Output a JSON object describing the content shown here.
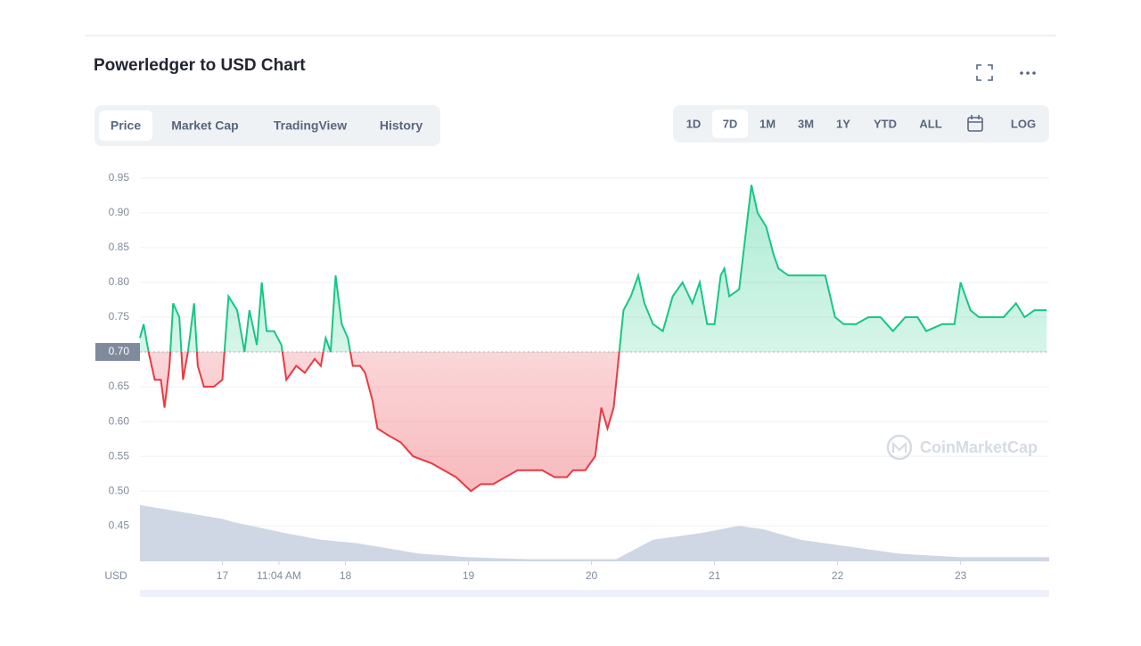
{
  "header": {
    "title": "Powerledger to USD Chart"
  },
  "tabs": [
    "Price",
    "Market Cap",
    "TradingView",
    "History"
  ],
  "ranges": [
    "1D",
    "7D",
    "1M",
    "3M",
    "1Y",
    "YTD",
    "ALL",
    "LOG"
  ],
  "watermark": "CoinMarketCap",
  "chart_data": {
    "type": "line",
    "y_label": "USD",
    "up_color": "#16c784",
    "down_color": "#ea3943",
    "volume_color": "#cfd6e4",
    "baseline": {
      "value": 0.7,
      "label": "0.70"
    },
    "grid": true,
    "xlim": [
      16.33,
      23.72
    ],
    "ylim": [
      0.399,
      0.969
    ],
    "xticks": [
      {
        "value": 17,
        "label": "17"
      },
      {
        "value": 17.46,
        "label": "11:04 AM"
      },
      18,
      19,
      20,
      21,
      22,
      23
    ],
    "yticks": [
      0.45,
      {
        "value": 0.5,
        "label": "0.50"
      },
      0.55,
      {
        "value": 0.6,
        "label": "0.60"
      },
      0.65,
      {
        "value": 0.7,
        "label": "0.70"
      },
      0.75,
      {
        "value": 0.8,
        "label": "0.80"
      },
      0.85,
      {
        "value": 0.9,
        "label": "0.90"
      },
      0.95
    ],
    "x": [
      16.33,
      16.36,
      16.4,
      16.45,
      16.5,
      16.53,
      16.57,
      16.6,
      16.65,
      16.68,
      16.72,
      16.77,
      16.8,
      16.85,
      16.93,
      17.0,
      17.05,
      17.12,
      17.18,
      17.22,
      17.28,
      17.32,
      17.36,
      17.42,
      17.48,
      17.52,
      17.6,
      17.67,
      17.75,
      17.8,
      17.84,
      17.88,
      17.92,
      17.97,
      18.02,
      18.06,
      18.12,
      18.16,
      18.22,
      18.26,
      18.35,
      18.45,
      18.55,
      18.7,
      18.8,
      18.9,
      19.02,
      19.1,
      19.2,
      19.3,
      19.4,
      19.5,
      19.6,
      19.7,
      19.8,
      19.85,
      19.95,
      20.03,
      20.08,
      20.13,
      20.18,
      20.22,
      20.26,
      20.32,
      20.38,
      20.43,
      20.5,
      20.58,
      20.66,
      20.74,
      20.82,
      20.88,
      20.94,
      21.0,
      21.05,
      21.08,
      21.12,
      21.2,
      21.3,
      21.35,
      21.42,
      21.48,
      21.52,
      21.6,
      21.72,
      21.82,
      21.9,
      21.98,
      22.05,
      22.15,
      22.25,
      22.35,
      22.45,
      22.55,
      22.65,
      22.72,
      22.85,
      22.95,
      23.0,
      23.08,
      23.15,
      23.25,
      23.35,
      23.45,
      23.52,
      23.6,
      23.7
    ],
    "values": [
      0.72,
      0.74,
      0.7,
      0.66,
      0.66,
      0.62,
      0.68,
      0.77,
      0.75,
      0.66,
      0.7,
      0.77,
      0.68,
      0.65,
      0.65,
      0.66,
      0.78,
      0.76,
      0.7,
      0.76,
      0.71,
      0.8,
      0.73,
      0.73,
      0.71,
      0.66,
      0.68,
      0.67,
      0.69,
      0.68,
      0.72,
      0.7,
      0.81,
      0.74,
      0.72,
      0.68,
      0.68,
      0.67,
      0.63,
      0.59,
      0.58,
      0.57,
      0.55,
      0.54,
      0.53,
      0.52,
      0.5,
      0.51,
      0.51,
      0.52,
      0.53,
      0.53,
      0.53,
      0.52,
      0.52,
      0.53,
      0.53,
      0.55,
      0.62,
      0.59,
      0.62,
      0.69,
      0.76,
      0.78,
      0.81,
      0.77,
      0.74,
      0.73,
      0.78,
      0.8,
      0.77,
      0.8,
      0.74,
      0.74,
      0.81,
      0.82,
      0.78,
      0.79,
      0.94,
      0.9,
      0.88,
      0.84,
      0.82,
      0.81,
      0.81,
      0.81,
      0.81,
      0.75,
      0.74,
      0.74,
      0.75,
      0.75,
      0.73,
      0.75,
      0.75,
      0.73,
      0.74,
      0.74,
      0.8,
      0.76,
      0.75,
      0.75,
      0.75,
      0.77,
      0.75,
      0.76,
      0.76
    ],
    "volume_x": [
      16.33,
      17.0,
      17.1,
      17.5,
      17.8,
      18.1,
      18.6,
      19.0,
      19.5,
      20.2,
      20.5,
      20.9,
      21.2,
      21.4,
      21.7,
      22.1,
      22.5,
      23.0,
      23.72
    ],
    "volume_values": [
      0.48,
      0.46,
      0.455,
      0.44,
      0.43,
      0.425,
      0.41,
      0.405,
      0.402,
      0.402,
      0.43,
      0.44,
      0.45,
      0.445,
      0.43,
      0.42,
      0.41,
      0.405,
      0.405
    ]
  }
}
